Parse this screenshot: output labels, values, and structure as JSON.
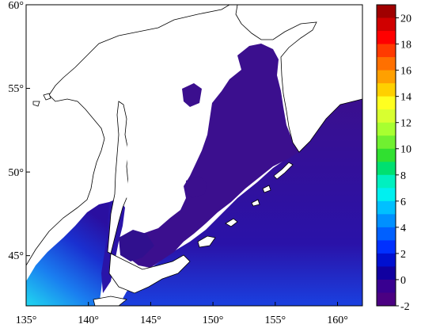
{
  "map": {
    "x_ticks": [
      "135°",
      "140°",
      "145°",
      "150°",
      "155°",
      "160°"
    ],
    "y_ticks": [
      "60°",
      "55°",
      "50°",
      "45°"
    ],
    "extent": {
      "lon": [
        135,
        162
      ],
      "lat": [
        42,
        60
      ]
    }
  },
  "colorbar": {
    "labels": [
      "20",
      "18",
      "16",
      "14",
      "12",
      "10",
      "8",
      "6",
      "4",
      "2",
      "0",
      "-2"
    ],
    "range": [
      -2,
      21
    ],
    "colors": [
      "#a00000",
      "#d00000",
      "#ff0000",
      "#ff3a00",
      "#ff7000",
      "#ffa000",
      "#ffd000",
      "#ffff20",
      "#d8ff30",
      "#a8ff30",
      "#70f030",
      "#30e030",
      "#00e070",
      "#00f0c0",
      "#00f0f0",
      "#00c0ff",
      "#0090ff",
      "#0060ff",
      "#0030ff",
      "#0010d0",
      "#1000a0",
      "#380090",
      "#4b0082"
    ]
  },
  "colors": {
    "ocean_deep": "#3b0f8e",
    "ocean_mid": "#2e0f9a",
    "ocean_blue": "#1a20c8",
    "ocean_light": "#1e60e8",
    "ocean_cyan": "#20c0f0",
    "land": "#ffffff",
    "coast": "#000000"
  }
}
